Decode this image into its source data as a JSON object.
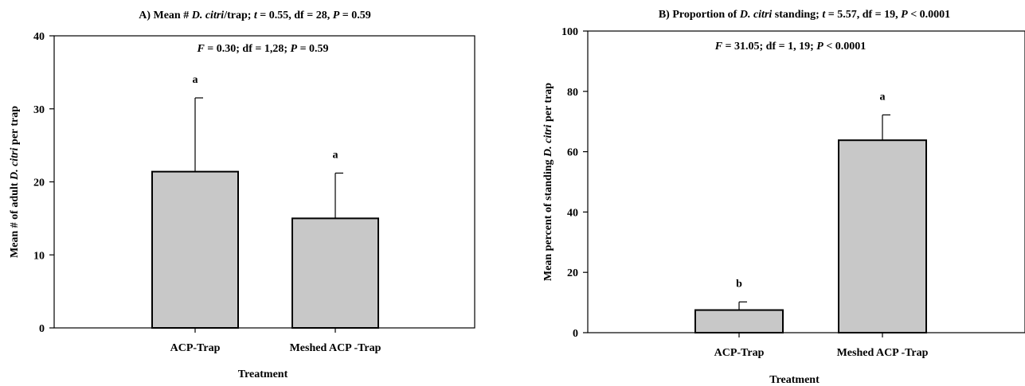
{
  "chart_data": [
    {
      "type": "bar",
      "panel": "A",
      "title": {
        "prefix": "A) Mean # ",
        "species": "D. citri",
        "suffix": "/trap; ",
        "t_symbol": "t",
        "t_text": " = 0.55, df = 28, ",
        "p_symbol": "P",
        "p_text": " = 0.59"
      },
      "stat": {
        "f_symbol": "F",
        "f_text": " = 0.30; df = 1,28; ",
        "p_symbol": "P",
        "p_text": " = 0.59"
      },
      "xlabel": "Treatment",
      "ylabel": {
        "prefix": "Mean # of adult ",
        "species": "D. citri",
        "suffix": " per trap"
      },
      "categories": [
        "ACP-Trap",
        "Meshed ACP -Trap"
      ],
      "values": [
        21.4,
        15.0
      ],
      "errors": [
        10.1,
        6.2
      ],
      "letters": [
        "a",
        "a"
      ],
      "ylim": [
        0,
        40
      ],
      "yticks": [
        0,
        10,
        20,
        30,
        40
      ],
      "bar_color": "#c8c8c8"
    },
    {
      "type": "bar",
      "panel": "B",
      "title": {
        "prefix": "B) Proportion of ",
        "species": "D. citri",
        "suffix": " standing; ",
        "t_symbol": "t",
        "t_text": " = 5.57, df = 19, ",
        "p_symbol": "P",
        "p_text": " < 0.0001"
      },
      "stat": {
        "f_symbol": "F",
        "f_text": " = 31.05; df = 1, 19; ",
        "p_symbol": "P",
        "p_text": " < 0.0001"
      },
      "xlabel": "Treatment",
      "ylabel": {
        "prefix": "Mean percent of standing ",
        "species": "D. citri",
        "suffix": " per trap"
      },
      "categories": [
        "ACP-Trap",
        "Meshed ACP -Trap"
      ],
      "values": [
        7.5,
        63.8
      ],
      "errors": [
        2.7,
        8.4
      ],
      "letters": [
        "b",
        "a"
      ],
      "ylim": [
        0,
        100
      ],
      "yticks": [
        0,
        20,
        40,
        60,
        80,
        100
      ],
      "bar_color": "#c8c8c8"
    }
  ]
}
